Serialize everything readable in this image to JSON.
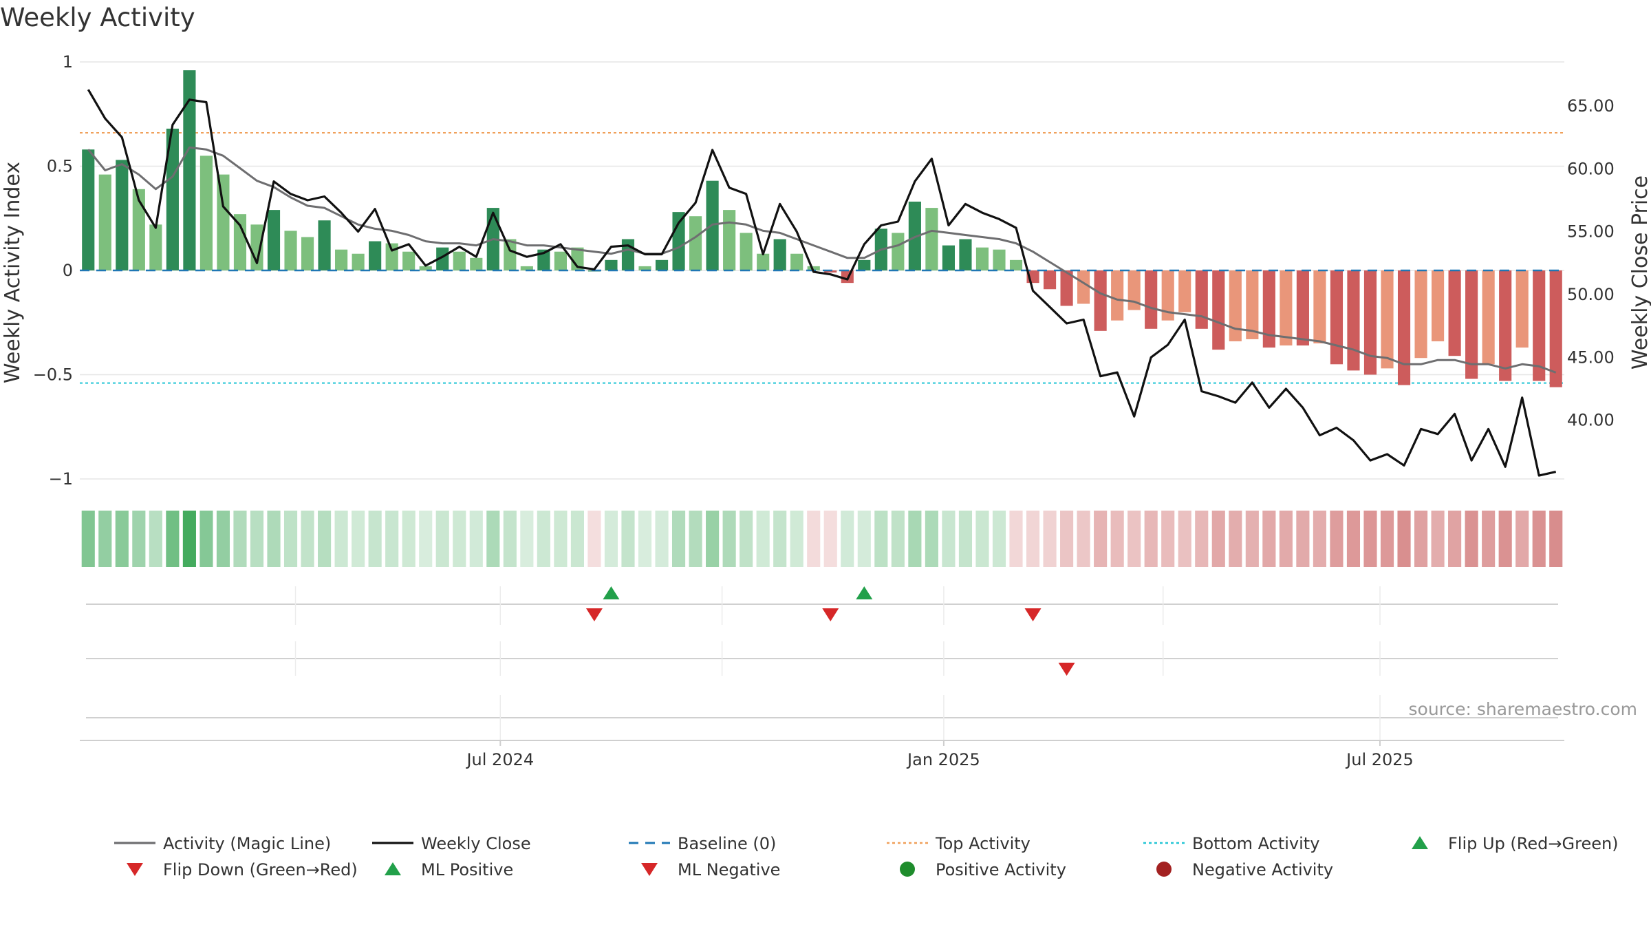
{
  "title": "Weekly Activity",
  "source": "source: sharemaestro.com",
  "chart_data": {
    "type": "bar",
    "x_axis": {
      "start_date": "2024-01-12",
      "interval_days": 7,
      "tick_labels": [
        "Jul 2024",
        "Jan 2025",
        "Jul 2025"
      ],
      "tick_dates": [
        "2024-07-01",
        "2025-01-01",
        "2025-07-01"
      ]
    },
    "y_left": {
      "label": "Weekly Activity Index",
      "ticks": [
        1,
        0.5,
        0,
        -0.5,
        -1
      ],
      "tick_labels": [
        "1",
        "0.5",
        "0",
        "−0.5",
        "−1"
      ],
      "ylim": [
        -1.02,
        1.0
      ]
    },
    "y_right": {
      "label": "Weekly Close Price",
      "ticks": [
        40,
        45,
        50,
        55,
        60,
        65
      ],
      "tick_labels": [
        "40.00",
        "45.00",
        "50.00",
        "55.00",
        "60.00",
        "65.00"
      ],
      "ylim": [
        35.0,
        68.5
      ]
    },
    "reference_lines": {
      "baseline": 0,
      "top_activity": 0.66,
      "bottom_activity": -0.54
    },
    "bars": [
      0.58,
      0.46,
      0.53,
      0.39,
      0.22,
      0.68,
      0.96,
      0.55,
      0.46,
      0.27,
      0.22,
      0.29,
      0.19,
      0.16,
      0.24,
      0.1,
      0.08,
      0.14,
      0.13,
      0.09,
      0.02,
      0.11,
      0.09,
      0.06,
      0.3,
      0.15,
      0.02,
      0.1,
      0.09,
      0.11,
      0.0,
      0.05,
      0.15,
      0.02,
      0.05,
      0.28,
      0.26,
      0.43,
      0.29,
      0.18,
      0.08,
      0.15,
      0.08,
      0.02,
      -0.01,
      -0.06,
      0.05,
      0.2,
      0.18,
      0.33,
      0.3,
      0.12,
      0.15,
      0.11,
      0.1,
      0.05,
      -0.06,
      -0.09,
      -0.17,
      -0.16,
      -0.29,
      -0.24,
      -0.19,
      -0.28,
      -0.24,
      -0.2,
      -0.28,
      -0.38,
      -0.34,
      -0.33,
      -0.37,
      -0.36,
      -0.36,
      -0.35,
      -0.45,
      -0.48,
      -0.5,
      -0.47,
      -0.55,
      -0.42,
      -0.34,
      -0.41,
      -0.52,
      -0.45,
      -0.53,
      -0.37,
      -0.53,
      -0.56
    ],
    "bar_shades": [
      "dark",
      "light",
      "dark",
      "light",
      "light",
      "dark",
      "dark",
      "light",
      "light",
      "light",
      "light",
      "dark",
      "light",
      "light",
      "dark",
      "light",
      "light",
      "dark",
      "light",
      "light",
      "light",
      "dark",
      "light",
      "light",
      "dark",
      "light",
      "light",
      "dark",
      "light",
      "light",
      "dark",
      "dark",
      "dark",
      "light",
      "dark",
      "dark",
      "light",
      "dark",
      "light",
      "light",
      "light",
      "dark",
      "light",
      "light",
      "dark",
      "dark",
      "dark",
      "dark",
      "light",
      "dark",
      "light",
      "dark",
      "dark",
      "light",
      "light",
      "light",
      "dark",
      "dark",
      "dark",
      "light",
      "dark",
      "light",
      "light",
      "dark",
      "light",
      "light",
      "dark",
      "dark",
      "light",
      "light",
      "dark",
      "light",
      "dark",
      "light",
      "dark",
      "dark",
      "dark",
      "light",
      "dark",
      "light",
      "light",
      "dark",
      "dark",
      "light",
      "dark",
      "light",
      "dark",
      "dark"
    ],
    "series": [
      {
        "name": "Activity (Magic Line)",
        "axis": "left",
        "values": [
          0.58,
          0.48,
          0.51,
          0.46,
          0.39,
          0.45,
          0.59,
          0.58,
          0.55,
          0.49,
          0.43,
          0.4,
          0.35,
          0.31,
          0.3,
          0.26,
          0.22,
          0.2,
          0.19,
          0.17,
          0.14,
          0.13,
          0.13,
          0.12,
          0.15,
          0.14,
          0.12,
          0.12,
          0.11,
          0.1,
          0.09,
          0.08,
          0.1,
          0.08,
          0.08,
          0.11,
          0.16,
          0.22,
          0.23,
          0.22,
          0.19,
          0.18,
          0.15,
          0.12,
          0.09,
          0.06,
          0.06,
          0.1,
          0.12,
          0.16,
          0.19,
          0.18,
          0.17,
          0.16,
          0.15,
          0.13,
          0.09,
          0.04,
          -0.01,
          -0.06,
          -0.11,
          -0.14,
          -0.15,
          -0.18,
          -0.2,
          -0.21,
          -0.22,
          -0.25,
          -0.28,
          -0.29,
          -0.31,
          -0.32,
          -0.33,
          -0.34,
          -0.36,
          -0.38,
          -0.41,
          -0.42,
          -0.45,
          -0.45,
          -0.43,
          -0.43,
          -0.45,
          -0.45,
          -0.47,
          -0.45,
          -0.46,
          -0.49
        ]
      },
      {
        "name": "Weekly Close",
        "axis": "right",
        "values": [
          66.3,
          64.0,
          62.5,
          57.5,
          55.3,
          63.5,
          65.5,
          65.3,
          57.0,
          55.5,
          52.5,
          59.0,
          58.0,
          57.5,
          57.8,
          56.5,
          55.0,
          56.8,
          53.5,
          54.0,
          52.3,
          53.0,
          53.8,
          53.0,
          56.5,
          53.5,
          53.0,
          53.3,
          54.0,
          52.2,
          52.0,
          53.8,
          53.9,
          53.2,
          53.2,
          55.7,
          57.3,
          61.5,
          58.5,
          58.0,
          53.2,
          57.2,
          55.0,
          51.8,
          51.6,
          51.2,
          54.0,
          55.5,
          55.8,
          59.0,
          60.8,
          55.5,
          57.2,
          56.5,
          56.0,
          55.3,
          50.3,
          49.0,
          47.7,
          48.0,
          43.5,
          43.8,
          40.3,
          45.0,
          46.0,
          48.0,
          42.3,
          41.9,
          41.4,
          43.0,
          41.0,
          42.5,
          41.0,
          38.8,
          39.4,
          38.4,
          36.8,
          37.3,
          36.4,
          39.3,
          38.9,
          40.5,
          36.8,
          39.3,
          36.3,
          41.8,
          35.6,
          35.9
        ]
      }
    ],
    "activity_strip": {
      "note": "",
      "signs": [
        "pos",
        "pos",
        "pos",
        "pos",
        "pos",
        "pos",
        "pos",
        "pos",
        "pos",
        "pos",
        "pos",
        "pos",
        "pos",
        "pos",
        "pos",
        "pos",
        "pos",
        "pos",
        "pos",
        "pos",
        "pos",
        "pos",
        "pos",
        "pos",
        "pos",
        "pos",
        "pos",
        "pos",
        "pos",
        "pos",
        "neg",
        "pos",
        "pos",
        "pos",
        "pos",
        "pos",
        "pos",
        "pos",
        "pos",
        "pos",
        "pos",
        "pos",
        "pos",
        "neg",
        "neg",
        "pos",
        "pos",
        "pos",
        "pos",
        "pos",
        "pos",
        "pos",
        "pos",
        "pos",
        "pos",
        "neg",
        "neg",
        "neg",
        "neg",
        "neg",
        "neg",
        "neg",
        "neg",
        "neg",
        "neg",
        "neg",
        "neg",
        "neg",
        "neg",
        "neg",
        "neg",
        "neg",
        "neg",
        "neg",
        "neg",
        "neg",
        "neg",
        "neg",
        "neg",
        "neg",
        "neg",
        "neg",
        "neg",
        "neg",
        "neg",
        "neg",
        "neg",
        "neg"
      ]
    },
    "flip_markers": [
      {
        "type": "Flip Up (Red→Green)",
        "row": 1,
        "week_index": 31
      },
      {
        "type": "Flip Down (Green→Red)",
        "row": 1,
        "week_index": 30
      },
      {
        "type": "Flip Down (Green→Red)",
        "row": 1,
        "week_index": 44
      },
      {
        "type": "Flip Up (Red→Green)",
        "row": 1,
        "week_index": 46
      },
      {
        "type": "Flip Down (Green→Red)",
        "row": 1,
        "week_index": 56
      },
      {
        "type": "ML Negative",
        "row": 2,
        "week_index": 58
      }
    ],
    "legend": {
      "placement": "bottom",
      "items": [
        {
          "label": "Activity (Magic Line)",
          "symbol": "line",
          "color": "#6e6e70"
        },
        {
          "label": "Weekly Close",
          "symbol": "line",
          "color": "#111111"
        },
        {
          "label": "Baseline (0)",
          "symbol": "dashed",
          "color": "#1f77b4"
        },
        {
          "label": "Top Activity",
          "symbol": "dotted",
          "color": "#f0a05a"
        },
        {
          "label": "Bottom Activity",
          "symbol": "dotted",
          "color": "#22c5d5"
        },
        {
          "label": "Flip Up (Red→Green)",
          "symbol": "triangle-up",
          "color": "#22a04a"
        },
        {
          "label": "Flip Down (Green→Red)",
          "symbol": "triangle-down",
          "color": "#d62728"
        },
        {
          "label": "ML Positive",
          "symbol": "triangle-up",
          "color": "#22a04a"
        },
        {
          "label": "ML Negative",
          "symbol": "triangle-down",
          "color": "#d62728"
        },
        {
          "label": "Positive Activity",
          "symbol": "circle",
          "color": "#1e8c2c"
        },
        {
          "label": "Negative Activity",
          "symbol": "circle",
          "color": "#a32121"
        }
      ]
    },
    "colors": {
      "pos_dark": "#2e8b57",
      "pos_light": "#7dbf7d",
      "neg_dark": "#cd5c5c",
      "neg_light": "#e9967a",
      "strip_pos": "#3aa655",
      "strip_neg": "#c24a4a",
      "grid": "#e6e6e6"
    }
  }
}
